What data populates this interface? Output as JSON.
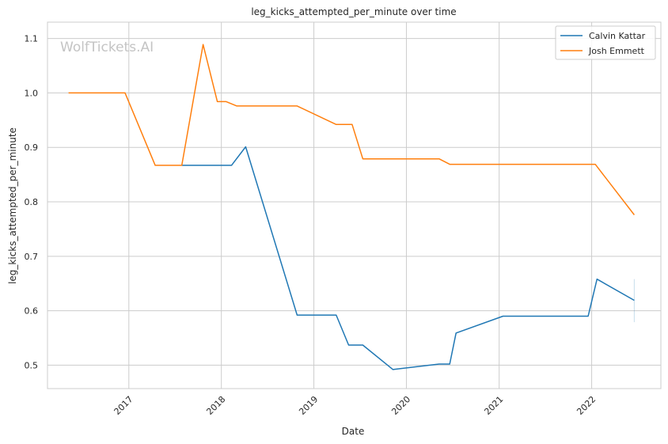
{
  "chart_data": {
    "type": "line",
    "title": "leg_kicks_attempted_per_minute over time",
    "xlabel": "Date",
    "ylabel": "leg_kicks_attempted_per_minute",
    "watermark": "WolfTickets.AI",
    "x_tick_labels": [
      "2017",
      "2018",
      "2019",
      "2020",
      "2021",
      "2022"
    ],
    "y_ticks": [
      0.5,
      0.6,
      0.7,
      0.8,
      0.9,
      1.0,
      1.1
    ],
    "y_tick_labels": [
      "0.5",
      "0.6",
      "0.7",
      "0.8",
      "0.9",
      "1.0",
      "1.1"
    ],
    "xlim": [
      "2016-02-15",
      "2022-10-01"
    ],
    "ylim": [
      0.457,
      1.13
    ],
    "grid": true,
    "legend_position": "top-right",
    "series": [
      {
        "name": "Calvin Kattar",
        "color": "#1f77b4",
        "points": [
          {
            "x": "2017-07-29",
            "y": 0.867
          },
          {
            "x": "2018-02-10",
            "y": 0.867
          },
          {
            "x": "2018-04-07",
            "y": 0.901
          },
          {
            "x": "2018-10-27",
            "y": 0.592
          },
          {
            "x": "2019-03-30",
            "y": 0.592
          },
          {
            "x": "2019-05-18",
            "y": 0.537
          },
          {
            "x": "2019-07-13",
            "y": 0.537
          },
          {
            "x": "2019-11-09",
            "y": 0.492
          },
          {
            "x": "2020-05-09",
            "y": 0.502
          },
          {
            "x": "2020-06-20",
            "y": 0.502
          },
          {
            "x": "2020-07-15",
            "y": 0.559
          },
          {
            "x": "2021-01-16",
            "y": 0.59
          },
          {
            "x": "2021-12-18",
            "y": 0.59
          },
          {
            "x": "2022-01-22",
            "y": 0.658
          },
          {
            "x": "2022-06-18",
            "y": 0.619
          }
        ],
        "error_bar": {
          "x": "2022-06-18",
          "low": 0.579,
          "high": 0.658
        }
      },
      {
        "name": "Josh Emmett",
        "color": "#ff7f0e",
        "points": [
          {
            "x": "2016-05-08",
            "y": 1.0
          },
          {
            "x": "2016-12-17",
            "y": 1.0
          },
          {
            "x": "2017-04-15",
            "y": 0.867
          },
          {
            "x": "2017-07-29",
            "y": 0.867
          },
          {
            "x": "2017-10-21",
            "y": 1.089
          },
          {
            "x": "2017-12-16",
            "y": 0.984
          },
          {
            "x": "2018-01-20",
            "y": 0.984
          },
          {
            "x": "2018-03-03",
            "y": 0.976
          },
          {
            "x": "2018-10-27",
            "y": 0.976
          },
          {
            "x": "2019-03-30",
            "y": 0.942
          },
          {
            "x": "2019-06-01",
            "y": 0.942
          },
          {
            "x": "2019-07-13",
            "y": 0.879
          },
          {
            "x": "2020-05-09",
            "y": 0.879
          },
          {
            "x": "2020-06-20",
            "y": 0.869
          },
          {
            "x": "2022-01-15",
            "y": 0.869
          },
          {
            "x": "2022-06-18",
            "y": 0.776
          }
        ]
      }
    ]
  }
}
